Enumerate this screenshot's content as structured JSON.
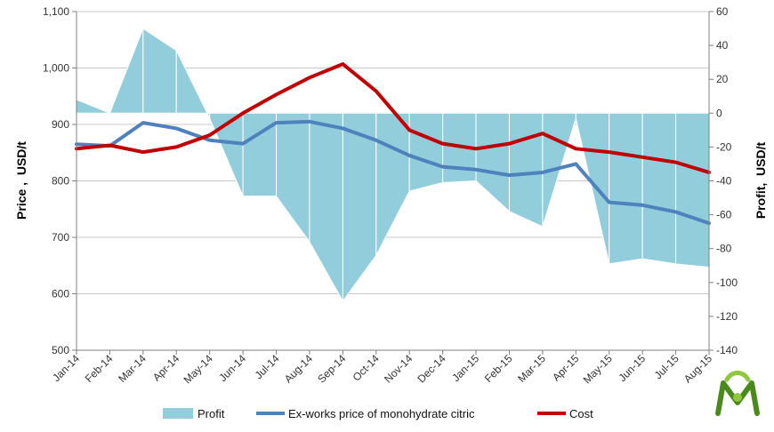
{
  "chart_data": {
    "type": "area",
    "title": "",
    "categories": [
      "Jan-14",
      "Feb-14",
      "Mar-14",
      "Apr-14",
      "May-14",
      "Jun-14",
      "Jul-14",
      "Aug-14",
      "Sep-14",
      "Oct-14",
      "Nov-14",
      "Dec-14",
      "Jan-15",
      "Feb-15",
      "Mar-15",
      "Apr-15",
      "May-15",
      "Jun-15",
      "Jul-15",
      "Aug-15"
    ],
    "y_left": {
      "label": "Price ,  USD/t",
      "ylim": [
        500,
        1100
      ],
      "ticks": [
        500,
        600,
        700,
        800,
        900,
        1000,
        1100
      ],
      "tick_labels": [
        "500",
        "600",
        "700",
        "800",
        "900",
        "1,000",
        "1,100"
      ]
    },
    "y_right": {
      "label": "Profit,  USD/t",
      "ylim": [
        -140,
        60
      ],
      "ticks": [
        -140,
        -120,
        -100,
        -80,
        -60,
        -40,
        -20,
        0,
        20,
        40,
        60
      ],
      "tick_labels": [
        "-140",
        "-120",
        "-100",
        "-80",
        "-60",
        "-40",
        "-20",
        "0",
        "20",
        "40",
        "60"
      ]
    },
    "grid": true,
    "legend_position": "bottom",
    "series": [
      {
        "name": "Profit",
        "kind": "area",
        "axis": "right",
        "color": "#92cddc",
        "values": [
          8,
          0,
          50,
          37,
          -3,
          -49,
          -49,
          -76,
          -111,
          -84,
          -46,
          -41,
          -40,
          -58,
          -67,
          -3,
          -89,
          -86,
          -89,
          -91
        ]
      },
      {
        "name": "Ex-works price of monohydrate citric",
        "kind": "line",
        "axis": "left",
        "color": "#4f81bd",
        "values": [
          865,
          862,
          903,
          893,
          872,
          866,
          903,
          905,
          893,
          872,
          845,
          825,
          820,
          810,
          815,
          830,
          762,
          757,
          745,
          725
        ]
      },
      {
        "name": "Cost",
        "kind": "line",
        "axis": "right",
        "color": "#c00000",
        "values": [
          -21,
          -19,
          -23,
          -20,
          -13,
          0,
          11,
          21,
          29,
          13,
          -10,
          -18,
          -21,
          -18,
          -12,
          -21,
          -23,
          -26,
          -29,
          -35
        ]
      }
    ]
  },
  "logo": {
    "name": "logo-icon",
    "colors": [
      "#4a8a1c",
      "#8fc73e"
    ]
  }
}
